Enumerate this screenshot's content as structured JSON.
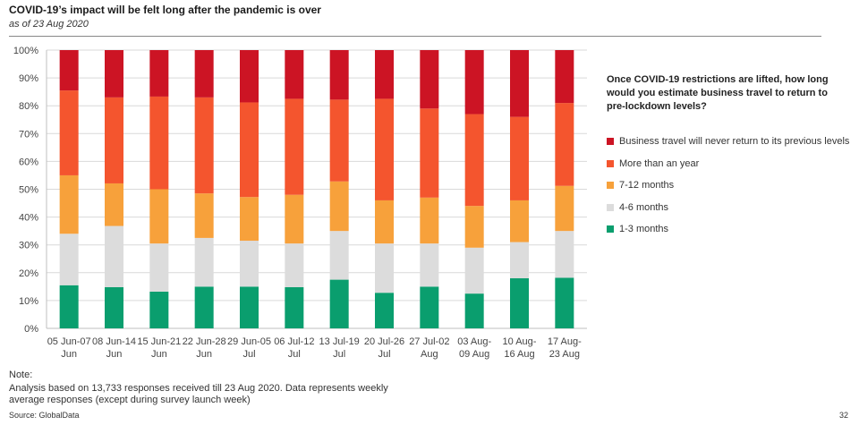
{
  "header": {
    "title": "COVID-19’s impact will be felt long after the pandemic is over",
    "subtitle": "as of 23 Aug 2020"
  },
  "chart_data": {
    "type": "bar",
    "stacked": true,
    "percent": true,
    "categories": [
      [
        "05 Jun-07",
        "Jun"
      ],
      [
        "08 Jun-14",
        "Jun"
      ],
      [
        "15 Jun-21",
        "Jun"
      ],
      [
        "22 Jun-28",
        "Jun"
      ],
      [
        "29 Jun-05",
        "Jul"
      ],
      [
        "06 Jul-12",
        "Jul"
      ],
      [
        "13 Jul-19",
        "Jul"
      ],
      [
        "20 Jul-26",
        "Jul"
      ],
      [
        "27 Jul-02",
        "Aug"
      ],
      [
        "03 Aug-",
        "09 Aug"
      ],
      [
        "10 Aug-",
        "16 Aug"
      ],
      [
        "17 Aug-",
        "23 Aug"
      ]
    ],
    "ylim": [
      0,
      100
    ],
    "yticks": [
      "0%",
      "10%",
      "20%",
      "30%",
      "40%",
      "50%",
      "60%",
      "70%",
      "80%",
      "90%",
      "100%"
    ],
    "grid": true,
    "legend_position": "right",
    "legend_title": "Once COVID-19 restrictions are lifted, how long would you estimate business travel to return to pre-lockdown levels?",
    "series": [
      {
        "name": "1-3 months",
        "color": "#0a9e6e",
        "values": [
          15.5,
          14.8,
          13.2,
          15.0,
          15.0,
          14.8,
          17.5,
          12.8,
          15.0,
          12.5,
          18.0,
          18.2
        ]
      },
      {
        "name": "4-6 months",
        "color": "#dcdcdc",
        "values": [
          18.5,
          22.0,
          17.3,
          17.5,
          16.5,
          15.7,
          17.5,
          17.7,
          15.5,
          16.5,
          13.0,
          16.8
        ]
      },
      {
        "name": "7-12 months",
        "color": "#f7a13b",
        "values": [
          21.0,
          15.3,
          19.5,
          16.0,
          15.7,
          17.5,
          17.8,
          15.5,
          16.5,
          15.0,
          15.0,
          16.2
        ]
      },
      {
        "name": "More than an year",
        "color": "#f4552e",
        "values": [
          30.5,
          30.9,
          33.3,
          34.5,
          34.0,
          34.5,
          29.4,
          36.5,
          32.0,
          33.0,
          30.0,
          29.8
        ]
      },
      {
        "name": "Business travel will never return to its previous levels",
        "color": "#cc1424",
        "values": [
          14.5,
          17.0,
          16.7,
          17.0,
          18.8,
          17.5,
          17.8,
          17.5,
          21.0,
          23.0,
          24.0,
          19.0
        ]
      }
    ],
    "legend_order": [
      "Business travel will never return to its previous levels",
      "More than an year",
      "7-12 months",
      "4-6 months",
      "1-3 months"
    ]
  },
  "footer": {
    "note_label": "Note:",
    "note_text": "Analysis based on 13,733 responses received till 23 Aug 2020. Data represents weekly average responses (except during survey launch week)",
    "source": "Source: GlobalData",
    "page_number": "32"
  }
}
